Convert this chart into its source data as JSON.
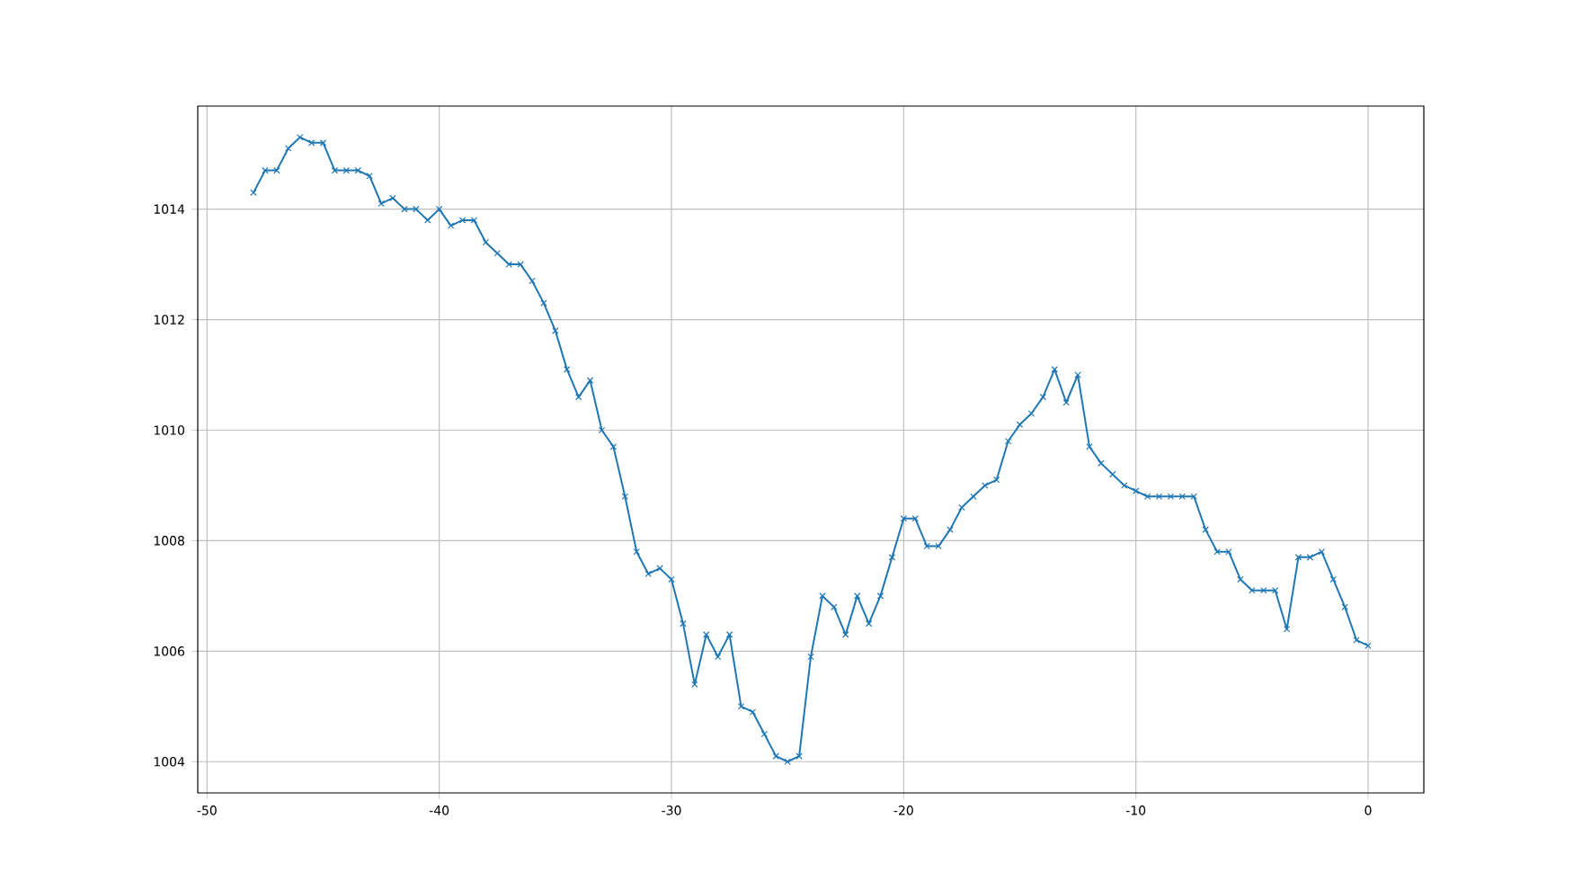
{
  "chart_data": {
    "type": "line",
    "color": "#1f77b4",
    "marker": "cross",
    "line_style": "solid",
    "grid": true,
    "x": [
      -48,
      -47.5,
      -47,
      -46.5,
      -46,
      -45.5,
      -45,
      -44.5,
      -44,
      -43.5,
      -43,
      -42.5,
      -42,
      -41.5,
      -41,
      -40.5,
      -40,
      -39.5,
      -39,
      -38.5,
      -38,
      -37.5,
      -37,
      -36.5,
      -36,
      -35.5,
      -35,
      -34.5,
      -34,
      -33.5,
      -33,
      -32.5,
      -32,
      -31.5,
      -31,
      -30.5,
      -30,
      -29.5,
      -29,
      -28.5,
      -28,
      -27.5,
      -27,
      -26.5,
      -26,
      -25.5,
      -25,
      -24.5,
      -24,
      -23.5,
      -23,
      -22.5,
      -22,
      -21.5,
      -21,
      -20.5,
      -20,
      -19.5,
      -19,
      -18.5,
      -18,
      -17.5,
      -17,
      -16.5,
      -16,
      -15.5,
      -15,
      -14.5,
      -14,
      -13.5,
      -13,
      -12.5,
      -12,
      -11.5,
      -11,
      -10.5,
      -10,
      -9.5,
      -9,
      -8.5,
      -8,
      -7.5,
      -7,
      -6.5,
      -6,
      -5.5,
      -5,
      -4.5,
      -4,
      -3.5,
      -3,
      -2.5,
      -2,
      -1.5,
      -1,
      -0.5,
      0
    ],
    "values": [
      1014.3,
      1014.7,
      1014.7,
      1015.1,
      1015.3,
      1015.2,
      1015.2,
      1014.7,
      1014.7,
      1014.7,
      1014.6,
      1014.1,
      1014.2,
      1014.0,
      1014.0,
      1013.8,
      1014.0,
      1013.7,
      1013.8,
      1013.8,
      1013.4,
      1013.2,
      1013.0,
      1013.0,
      1012.7,
      1012.3,
      1011.8,
      1011.1,
      1010.6,
      1010.9,
      1010.0,
      1009.7,
      1008.8,
      1007.8,
      1007.4,
      1007.5,
      1007.3,
      1006.5,
      1005.4,
      1006.3,
      1005.9,
      1006.3,
      1005.0,
      1004.9,
      1004.5,
      1004.1,
      1004.0,
      1004.1,
      1005.9,
      1007.0,
      1006.8,
      1006.3,
      1007.0,
      1006.5,
      1007.0,
      1007.7,
      1008.4,
      1008.4,
      1007.9,
      1007.9,
      1008.2,
      1008.6,
      1008.8,
      1009.0,
      1009.1,
      1009.8,
      1010.1,
      1010.3,
      1010.6,
      1011.1,
      1010.5,
      1011.0,
      1009.7,
      1009.4,
      1009.2,
      1009.0,
      1008.9,
      1008.8,
      1008.8,
      1008.8,
      1008.8,
      1008.8,
      1008.2,
      1007.8,
      1007.8,
      1007.3,
      1007.1,
      1007.1,
      1007.1,
      1006.4,
      1007.7,
      1007.7,
      1007.8,
      1007.3,
      1006.8,
      1006.2,
      1006.1
    ],
    "xlim": [
      -50.4,
      2.4
    ],
    "ylim": [
      1003.435,
      1015.865
    ],
    "xticks": [
      -50,
      -40,
      -30,
      -20,
      -10,
      0
    ],
    "yticks": [
      1004,
      1006,
      1008,
      1010,
      1012,
      1014
    ]
  }
}
